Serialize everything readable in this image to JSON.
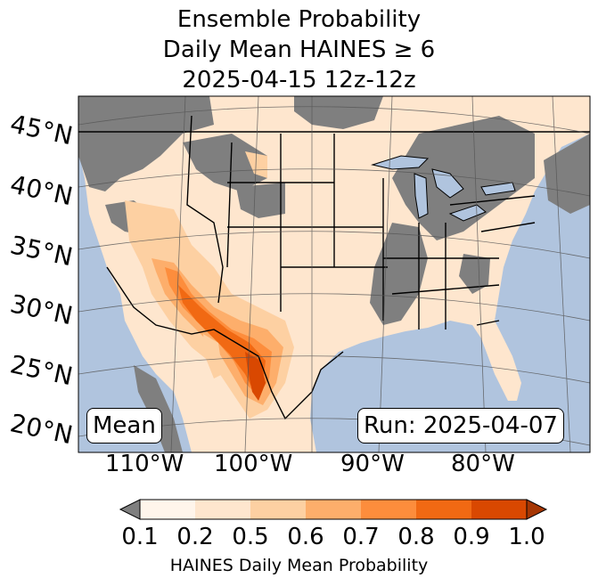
{
  "title": {
    "line1": "Ensemble Probability",
    "line2": "Daily Mean HAINES ≥ 6",
    "line3": "2025-04-15 12z-12z"
  },
  "lat_labels": [
    "45°N",
    "40°N",
    "35°N",
    "30°N",
    "25°N",
    "20°N"
  ],
  "lon_labels": [
    "110°W",
    "100°W",
    "90°W",
    "80°W"
  ],
  "stat_label": "Mean",
  "run_label": "Run: 2025-04-07",
  "colorbar": {
    "ticks": [
      "0.1",
      "0.2",
      "0.5",
      "0.6",
      "0.7",
      "0.8",
      "0.9",
      "1.0"
    ],
    "label": "HAINES Daily Mean Probability",
    "under_color": "#7f7f7f",
    "colors": [
      "#fff5eb",
      "#fee6ce",
      "#fdd0a2",
      "#fdae6b",
      "#fd8d3c",
      "#f16913",
      "#d94801",
      "#a63603"
    ]
  },
  "map_colors": {
    "ocean": "#b0c4de",
    "land_low": "#7f7f7f",
    "border": "#000000",
    "grid": "#555555"
  }
}
